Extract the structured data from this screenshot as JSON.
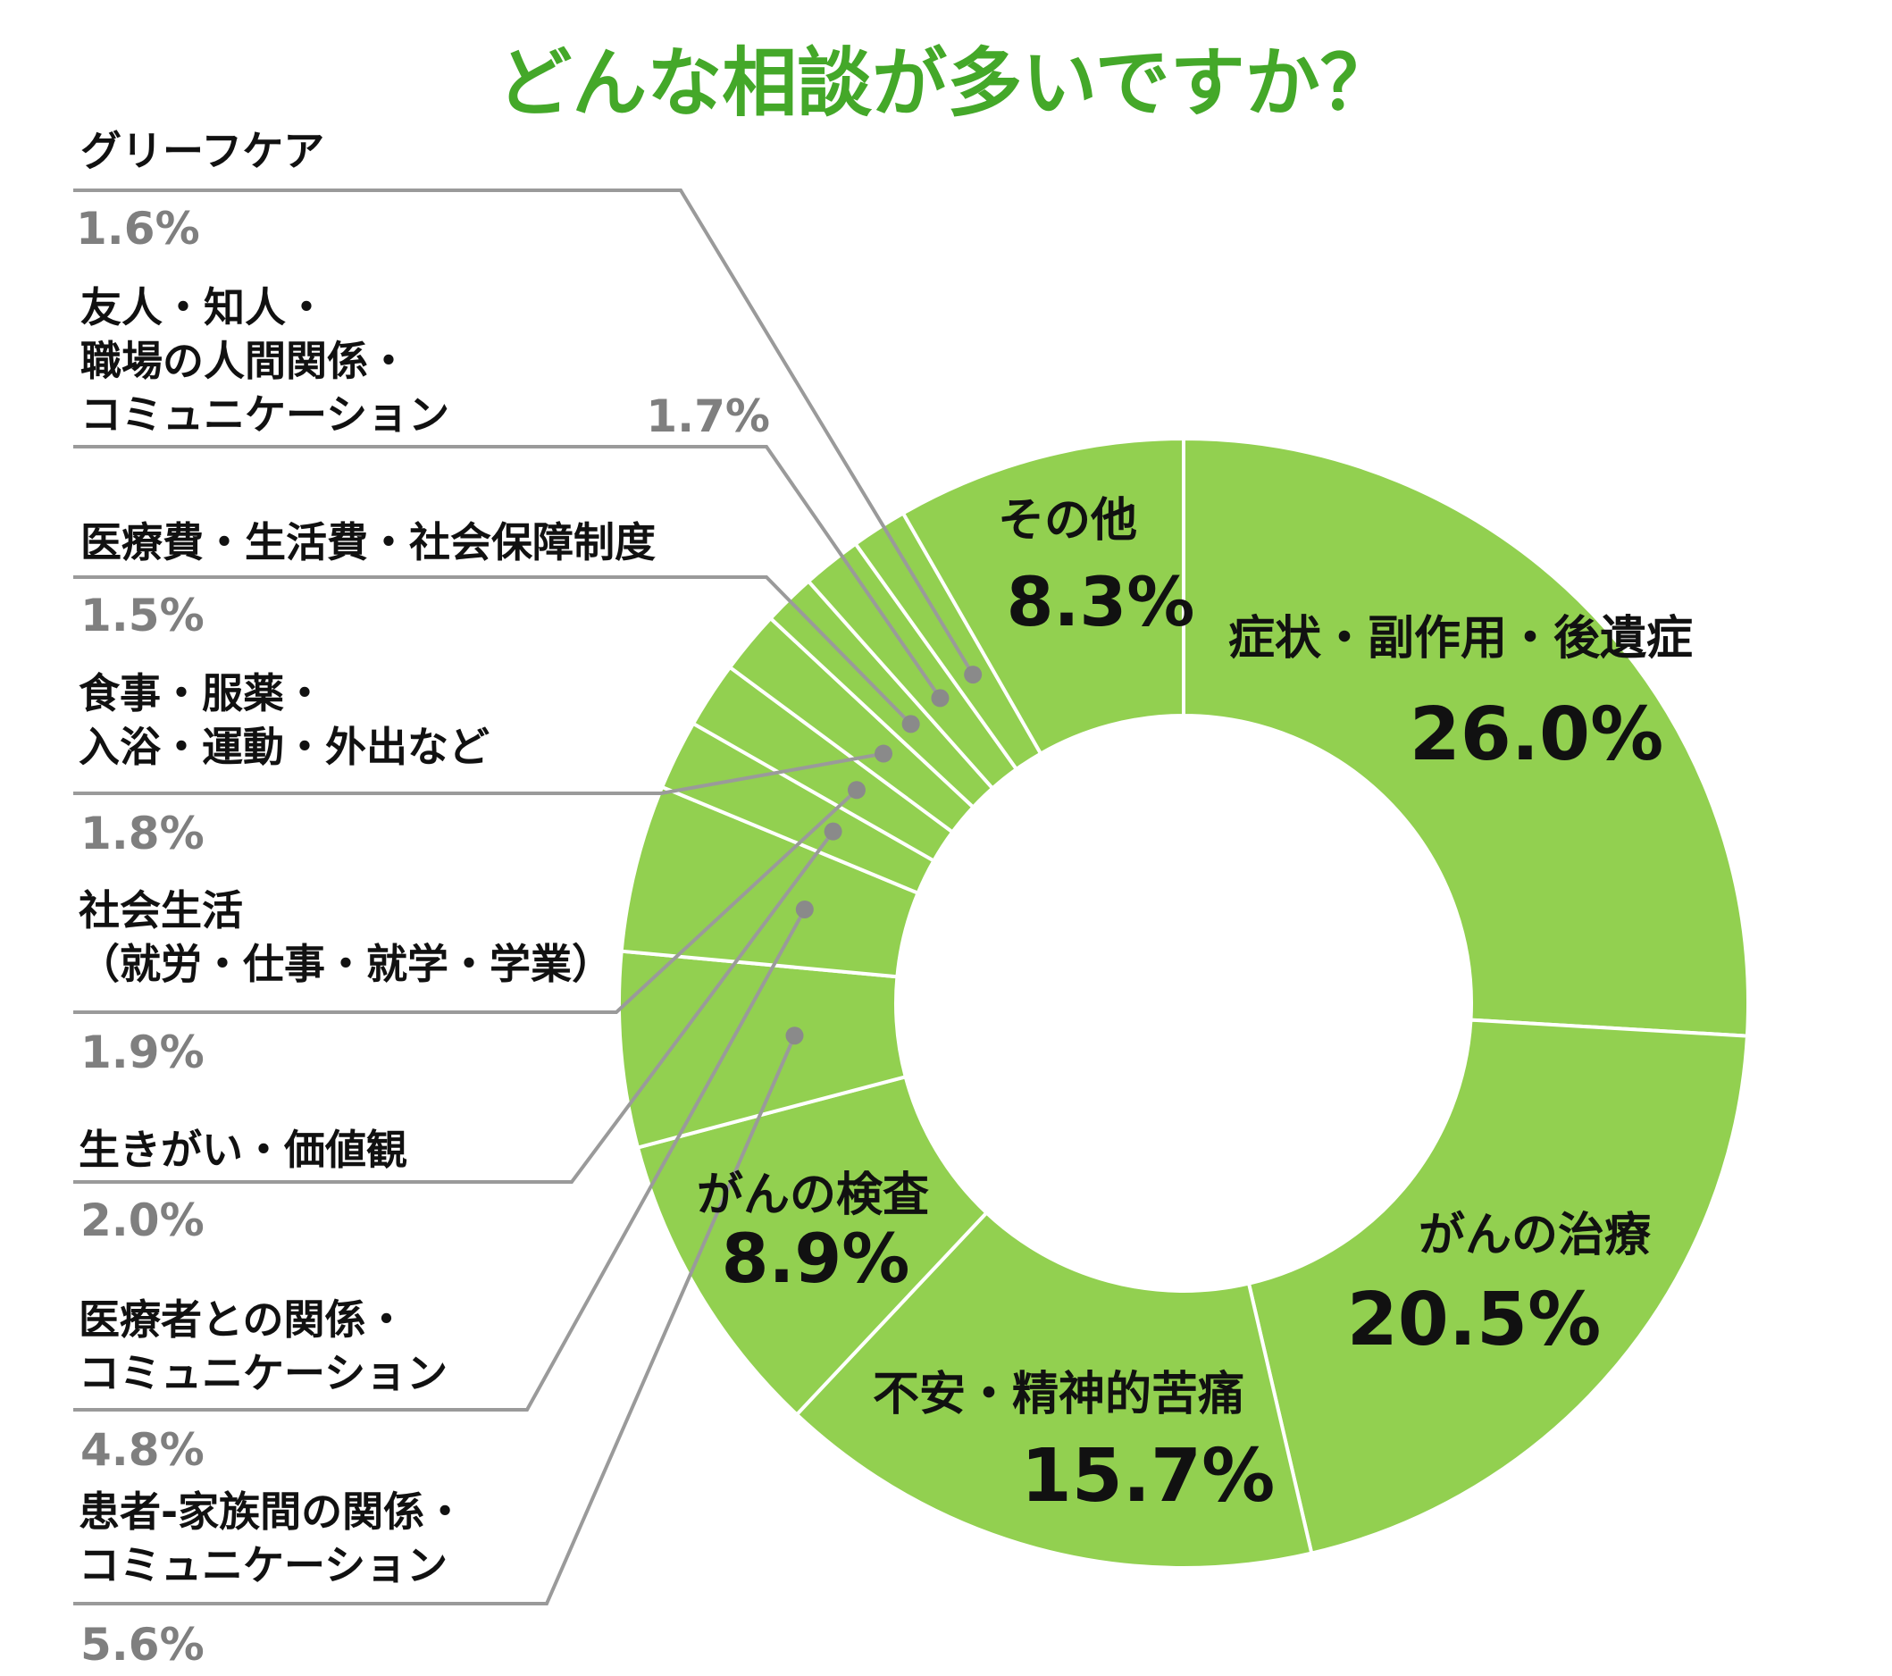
{
  "title": "どんな相談が多いですか？",
  "chart_data": {
    "type": "pie",
    "title": "どんな相談が多いですか？",
    "unit": "%",
    "legend": "none",
    "colors": {
      "slice": "#92d050",
      "separator": "#ffffff",
      "title": "#44a829",
      "leader": "#9a9a9a",
      "dot": "#8a8a8a",
      "outside_pct": "#7f7f7f"
    },
    "slices": [
      {
        "label": "症状・副作用・後遺症",
        "value": 26.0,
        "display": "26.0%"
      },
      {
        "label": "がんの治療",
        "value": 20.5,
        "display": "20.5%"
      },
      {
        "label": "不安・精神的苦痛",
        "value": 15.7,
        "display": "15.7%"
      },
      {
        "label": "がんの検査",
        "value": 8.9,
        "display": "8.9%"
      },
      {
        "label": "患者-家族間の関係・\nコミュニケーション",
        "value": 5.6,
        "display": "5.6%"
      },
      {
        "label": "医療者との関係・\nコミュニケーション",
        "value": 4.8,
        "display": "4.8%"
      },
      {
        "label": "生きがい・価値観",
        "value": 2.0,
        "display": "2.0%"
      },
      {
        "label": "社会生活\n（就労・仕事・就学・学業）",
        "value": 1.9,
        "display": "1.9%"
      },
      {
        "label": "食事・服薬・\n入浴・運動・外出など",
        "value": 1.8,
        "display": "1.8%"
      },
      {
        "label": "医療費・生活費・社会保障制度",
        "value": 1.5,
        "display": "1.5%"
      },
      {
        "label": "友人・知人・\n職場の人間関係・\nコミュニケーション",
        "value": 1.7,
        "display": "1.7%"
      },
      {
        "label": "グリーフケア",
        "value": 1.6,
        "display": "1.6%"
      },
      {
        "label": "その他",
        "value": 8.3,
        "display": "8.3%"
      }
    ]
  }
}
